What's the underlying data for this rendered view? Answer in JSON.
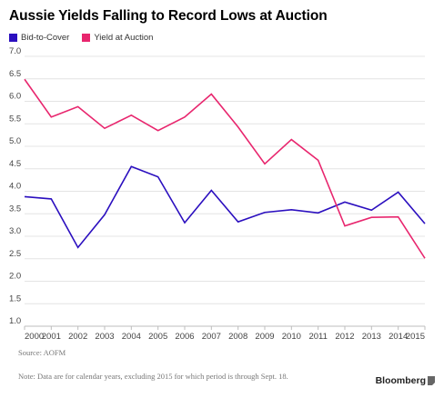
{
  "colors": {
    "series_bid": "#2b0fbf",
    "series_yield": "#e8266e",
    "grid": "#e4e4e4",
    "axis": "#bdbdbd"
  },
  "chart_data": {
    "type": "line",
    "title": "Aussie Yields Falling to Record Lows at Auction",
    "xlabel": "",
    "ylabel": "",
    "x": [
      "2000",
      "2001",
      "2002",
      "2003",
      "2004",
      "2005",
      "2006",
      "2007",
      "2008",
      "2009",
      "2010",
      "2011",
      "2012",
      "2013",
      "2014",
      "2015"
    ],
    "ylim": [
      1.0,
      7.0
    ],
    "yticks": [
      "1.0",
      "1.5",
      "2.0",
      "2.5",
      "3.0",
      "3.5",
      "4.0",
      "4.5",
      "5.0",
      "5.5",
      "6.0",
      "6.5",
      "7.0"
    ],
    "grid": true,
    "legend": "top-left",
    "series": [
      {
        "name": "Bid-to-Cover",
        "color": "#2b0fbf",
        "values": [
          3.88,
          3.83,
          2.75,
          3.48,
          4.55,
          4.32,
          3.3,
          4.02,
          3.32,
          3.53,
          3.59,
          3.52,
          3.76,
          3.58,
          3.98,
          3.28
        ]
      },
      {
        "name": "Yield at Auction",
        "color": "#e8266e",
        "values": [
          6.49,
          5.65,
          5.88,
          5.4,
          5.69,
          5.35,
          5.65,
          6.16,
          5.43,
          4.61,
          5.15,
          4.69,
          3.23,
          3.42,
          3.43,
          2.51
        ]
      }
    ]
  },
  "source": "Source: AOFM",
  "note": "Note: Data are for calendar years, excluding 2015 for which period is through Sept. 18.",
  "brand": "Bloomberg"
}
